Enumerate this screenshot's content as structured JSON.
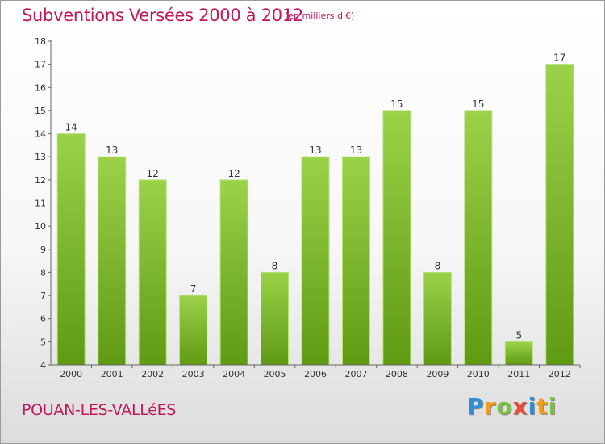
{
  "header": {
    "title": "Subventions Versées 2000 à 2012",
    "unit": "(en milliers d'€)"
  },
  "footer": {
    "commune": "POUAN-LES-VALLéES",
    "logo_letters": [
      {
        "ch": "P",
        "color": "#2e8fd8"
      },
      {
        "ch": "r",
        "color": "#f39c12"
      },
      {
        "ch": "o",
        "color": "#7cc242"
      },
      {
        "ch": "x",
        "color": "#e74c3c"
      },
      {
        "ch": "i",
        "color": "#2e8fd8"
      },
      {
        "ch": "t",
        "color": "#f39c12"
      },
      {
        "ch": "i",
        "color": "#7cc242"
      }
    ]
  },
  "chart_data": {
    "type": "bar",
    "categories": [
      "2000",
      "2001",
      "2002",
      "2003",
      "2004",
      "2005",
      "2006",
      "2007",
      "2008",
      "2009",
      "2010",
      "2011",
      "2012"
    ],
    "values": [
      14,
      13,
      12,
      7,
      12,
      8,
      13,
      13,
      15,
      8,
      15,
      5,
      17
    ],
    "yticks": [
      4,
      5,
      6,
      7,
      8,
      9,
      10,
      11,
      12,
      13,
      14,
      15,
      16,
      17,
      18
    ],
    "ylim": [
      4,
      18
    ],
    "grid": false,
    "colors": {
      "bar_top": "#9bd24a",
      "bar_bottom": "#5e9a12",
      "axis": "#666666",
      "text": "#333333"
    }
  }
}
